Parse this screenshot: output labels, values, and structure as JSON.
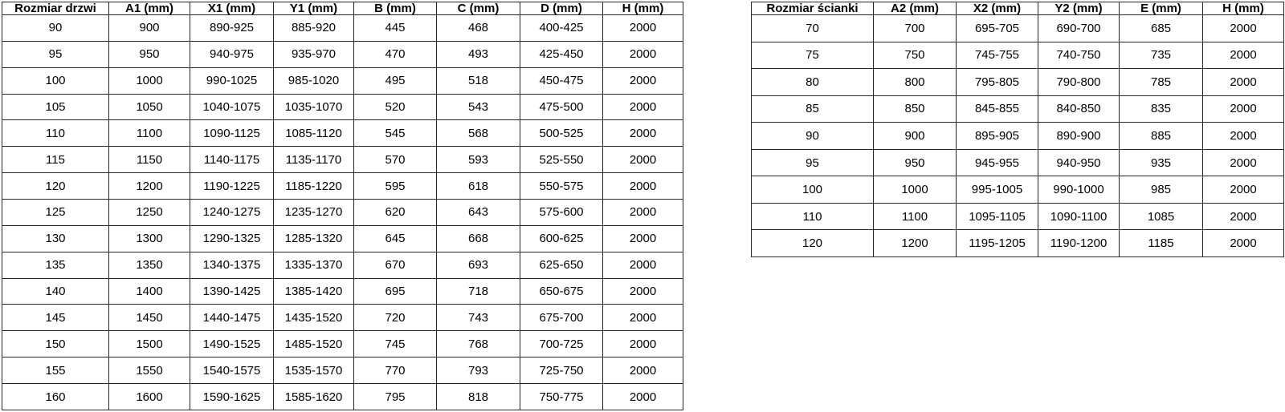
{
  "door_table": {
    "headers": [
      "Rozmiar drzwi",
      "A1 (mm)",
      "X1 (mm)",
      "Y1 (mm)",
      "B (mm)",
      "C (mm)",
      "D (mm)",
      "H (mm)"
    ],
    "rows": [
      [
        "90",
        "900",
        "890-925",
        "885-920",
        "445",
        "468",
        "400-425",
        "2000"
      ],
      [
        "95",
        "950",
        "940-975",
        "935-970",
        "470",
        "493",
        "425-450",
        "2000"
      ],
      [
        "100",
        "1000",
        "990-1025",
        "985-1020",
        "495",
        "518",
        "450-475",
        "2000"
      ],
      [
        "105",
        "1050",
        "1040-1075",
        "1035-1070",
        "520",
        "543",
        "475-500",
        "2000"
      ],
      [
        "110",
        "1100",
        "1090-1125",
        "1085-1120",
        "545",
        "568",
        "500-525",
        "2000"
      ],
      [
        "115",
        "1150",
        "1140-1175",
        "1135-1170",
        "570",
        "593",
        "525-550",
        "2000"
      ],
      [
        "120",
        "1200",
        "1190-1225",
        "1185-1220",
        "595",
        "618",
        "550-575",
        "2000"
      ],
      [
        "125",
        "1250",
        "1240-1275",
        "1235-1270",
        "620",
        "643",
        "575-600",
        "2000"
      ],
      [
        "130",
        "1300",
        "1290-1325",
        "1285-1320",
        "645",
        "668",
        "600-625",
        "2000"
      ],
      [
        "135",
        "1350",
        "1340-1375",
        "1335-1370",
        "670",
        "693",
        "625-650",
        "2000"
      ],
      [
        "140",
        "1400",
        "1390-1425",
        "1385-1420",
        "695",
        "718",
        "650-675",
        "2000"
      ],
      [
        "145",
        "1450",
        "1440-1475",
        "1435-1520",
        "720",
        "743",
        "675-700",
        "2000"
      ],
      [
        "150",
        "1500",
        "1490-1525",
        "1485-1520",
        "745",
        "768",
        "700-725",
        "2000"
      ],
      [
        "155",
        "1550",
        "1540-1575",
        "1535-1570",
        "770",
        "793",
        "725-750",
        "2000"
      ],
      [
        "160",
        "1600",
        "1590-1625",
        "1585-1620",
        "795",
        "818",
        "750-775",
        "2000"
      ]
    ]
  },
  "wall_table": {
    "headers": [
      "Rozmiar ścianki",
      "A2 (mm)",
      "X2 (mm)",
      "Y2 (mm)",
      "E (mm)",
      "H (mm)"
    ],
    "rows": [
      [
        "70",
        "700",
        "695-705",
        "690-700",
        "685",
        "2000"
      ],
      [
        "75",
        "750",
        "745-755",
        "740-750",
        "735",
        "2000"
      ],
      [
        "80",
        "800",
        "795-805",
        "790-800",
        "785",
        "2000"
      ],
      [
        "85",
        "850",
        "845-855",
        "840-850",
        "835",
        "2000"
      ],
      [
        "90",
        "900",
        "895-905",
        "890-900",
        "885",
        "2000"
      ],
      [
        "95",
        "950",
        "945-955",
        "940-950",
        "935",
        "2000"
      ],
      [
        "100",
        "1000",
        "995-1005",
        "990-1000",
        "985",
        "2000"
      ],
      [
        "110",
        "1100",
        "1095-1105",
        "1090-1100",
        "1085",
        "2000"
      ],
      [
        "120",
        "1200",
        "1195-1205",
        "1190-1200",
        "1185",
        "2000"
      ]
    ]
  },
  "colors": {
    "background": "#ffffff",
    "border": "#262626",
    "text": "#000000"
  }
}
